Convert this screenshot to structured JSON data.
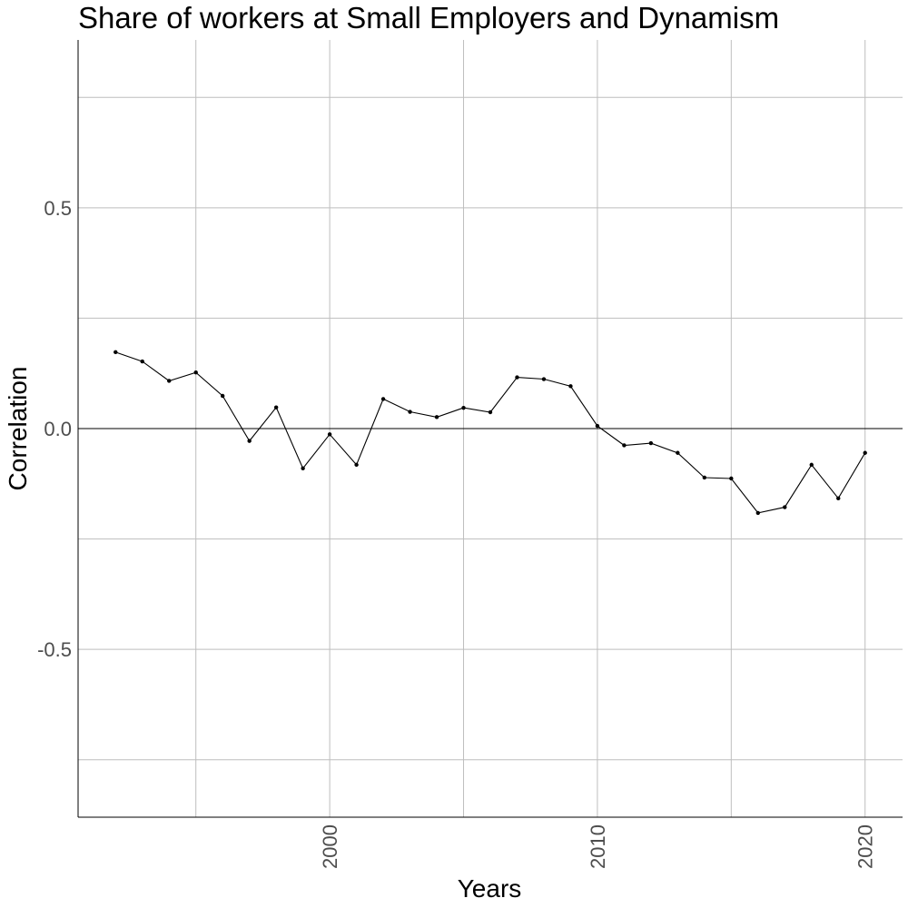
{
  "chart_data": {
    "type": "line",
    "title": "Share of workers at Small Employers and Dynamism",
    "xlabel": "Years",
    "ylabel": "Correlation",
    "xlim": [
      1990.6,
      2021.4
    ],
    "ylim": [
      -0.88,
      0.88
    ],
    "x_ticks": [
      2000,
      2010,
      2020
    ],
    "x_tick_labels": [
      "2000",
      "2010",
      "2020"
    ],
    "x_minor_grid": [
      1995,
      2005,
      2015
    ],
    "y_ticks": [
      -0.5,
      0.0,
      0.5
    ],
    "y_tick_labels": [
      "-0.5",
      "0.0",
      "0.5"
    ],
    "y_minor_grid": [
      -0.75,
      -0.25,
      0.25,
      0.75
    ],
    "reference_line": 0.0,
    "grid": true,
    "legend": "none",
    "x": [
      1992,
      1993,
      1994,
      1995,
      1996,
      1997,
      1998,
      1999,
      2000,
      2001,
      2002,
      2003,
      2004,
      2005,
      2006,
      2007,
      2008,
      2009,
      2010,
      2011,
      2012,
      2013,
      2014,
      2015,
      2016,
      2017,
      2018,
      2019,
      2020
    ],
    "series": [
      {
        "values": [
          0.173,
          0.152,
          0.108,
          0.127,
          0.074,
          -0.028,
          0.048,
          -0.09,
          -0.013,
          -0.082,
          0.067,
          0.038,
          0.026,
          0.047,
          0.037,
          0.116,
          0.112,
          0.096,
          0.006,
          -0.038,
          -0.033,
          -0.055,
          -0.111,
          -0.113,
          -0.191,
          -0.178,
          -0.082,
          -0.158,
          -0.055
        ],
        "color": "#000000"
      }
    ]
  }
}
